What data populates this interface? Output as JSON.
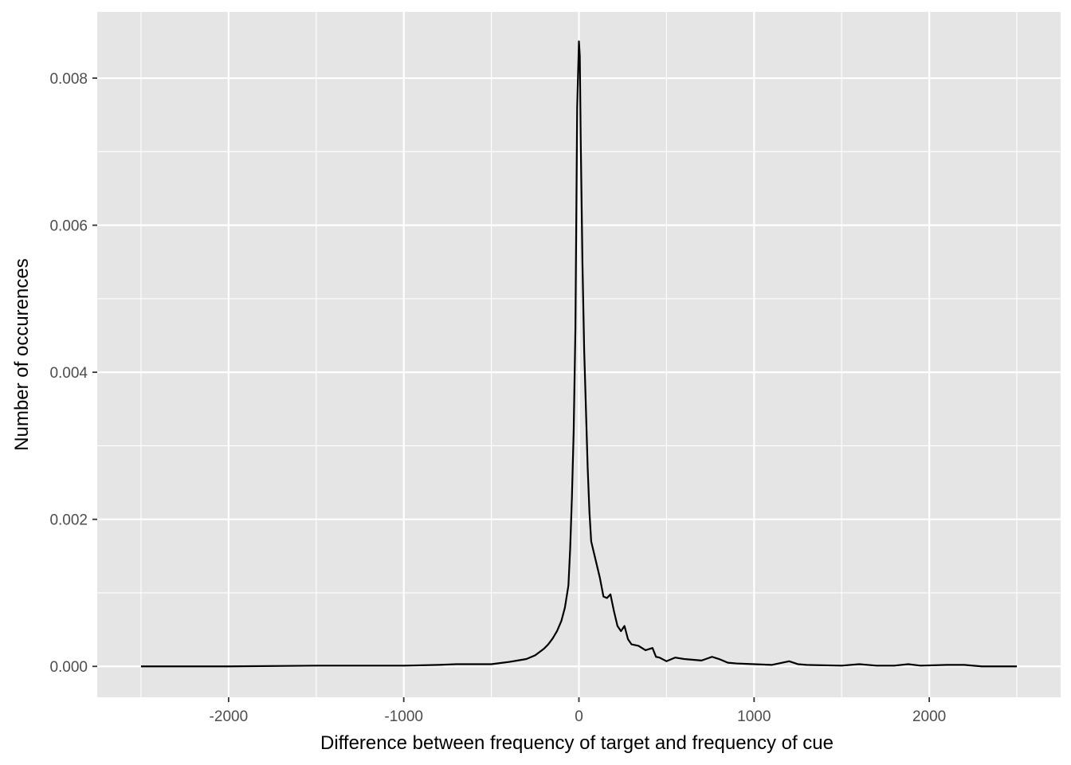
{
  "chart_data": {
    "type": "line",
    "xlabel": "Difference between frequency of target and frequency of cue",
    "ylabel": "Number of occurences",
    "xlim": [
      -2750,
      2750
    ],
    "ylim": [
      -0.00042,
      0.0089
    ],
    "x_ticks": [
      -2000,
      -1000,
      0,
      1000,
      2000
    ],
    "x_tick_labels": [
      "-2000",
      "-1000",
      "0",
      "1000",
      "2000"
    ],
    "y_ticks": [
      0.0,
      0.002,
      0.004,
      0.006,
      0.008
    ],
    "y_tick_labels": [
      "0.000",
      "0.002",
      "0.004",
      "0.006",
      "0.008"
    ],
    "grid": true,
    "legend": "none",
    "colors": {
      "panel": "#e5e5e5",
      "grid": "#ffffff",
      "line": "#000000",
      "tick_text": "#4d4d4d"
    },
    "series": [
      {
        "x": [
          -2500,
          -2000,
          -1500,
          -1000,
          -800,
          -700,
          -600,
          -500,
          -400,
          -350,
          -300,
          -250,
          -200,
          -175,
          -150,
          -125,
          -100,
          -80,
          -60,
          -50,
          -40,
          -30,
          -20,
          -10,
          0,
          5,
          10,
          20,
          30,
          40,
          50,
          60,
          70,
          80,
          100,
          120,
          140,
          160,
          180,
          200,
          220,
          240,
          260,
          280,
          300,
          340,
          380,
          420,
          440,
          460,
          500,
          550,
          600,
          700,
          760,
          800,
          850,
          900,
          1000,
          1100,
          1200,
          1250,
          1300,
          1500,
          1600,
          1700,
          1800,
          1880,
          1950,
          2100,
          2200,
          2300,
          2500
        ],
        "y": [
          0.0,
          0.0,
          1e-05,
          1e-05,
          2e-05,
          3e-05,
          3e-05,
          3e-05,
          6e-05,
          8e-05,
          0.0001,
          0.00015,
          0.00024,
          0.0003,
          0.00038,
          0.00048,
          0.00062,
          0.0008,
          0.0011,
          0.0016,
          0.0023,
          0.0032,
          0.0046,
          0.0076,
          0.0085,
          0.0083,
          0.0072,
          0.0055,
          0.0043,
          0.0035,
          0.0027,
          0.0021,
          0.0017,
          0.0016,
          0.0014,
          0.0012,
          0.00095,
          0.00093,
          0.00098,
          0.00075,
          0.00055,
          0.00048,
          0.00055,
          0.00037,
          0.0003,
          0.00028,
          0.00022,
          0.00025,
          0.00013,
          0.00012,
          7e-05,
          0.00012,
          0.0001,
          8e-05,
          0.00013,
          0.0001,
          5e-05,
          4e-05,
          3e-05,
          2e-05,
          7e-05,
          3e-05,
          2e-05,
          1e-05,
          3e-05,
          1e-05,
          1e-05,
          3e-05,
          1e-05,
          2e-05,
          2e-05,
          0.0,
          0.0
        ]
      }
    ]
  }
}
